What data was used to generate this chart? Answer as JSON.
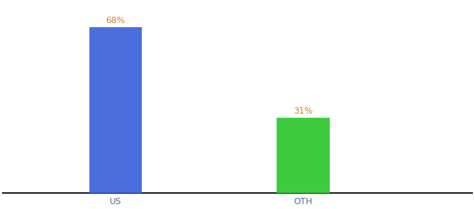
{
  "categories": [
    "US",
    "OTH"
  ],
  "values": [
    68,
    31
  ],
  "bar_colors": [
    "#4a6fdc",
    "#3dcc3d"
  ],
  "label_color": "#c8862a",
  "label_format": [
    "68%",
    "31%"
  ],
  "background_color": "#ffffff",
  "ylim": [
    0,
    78
  ],
  "bar_width": 0.28,
  "x_positions": [
    1,
    2
  ],
  "xlim": [
    0.4,
    2.9
  ],
  "tick_fontsize": 9,
  "label_fontsize": 9,
  "spine_color": "#111111"
}
